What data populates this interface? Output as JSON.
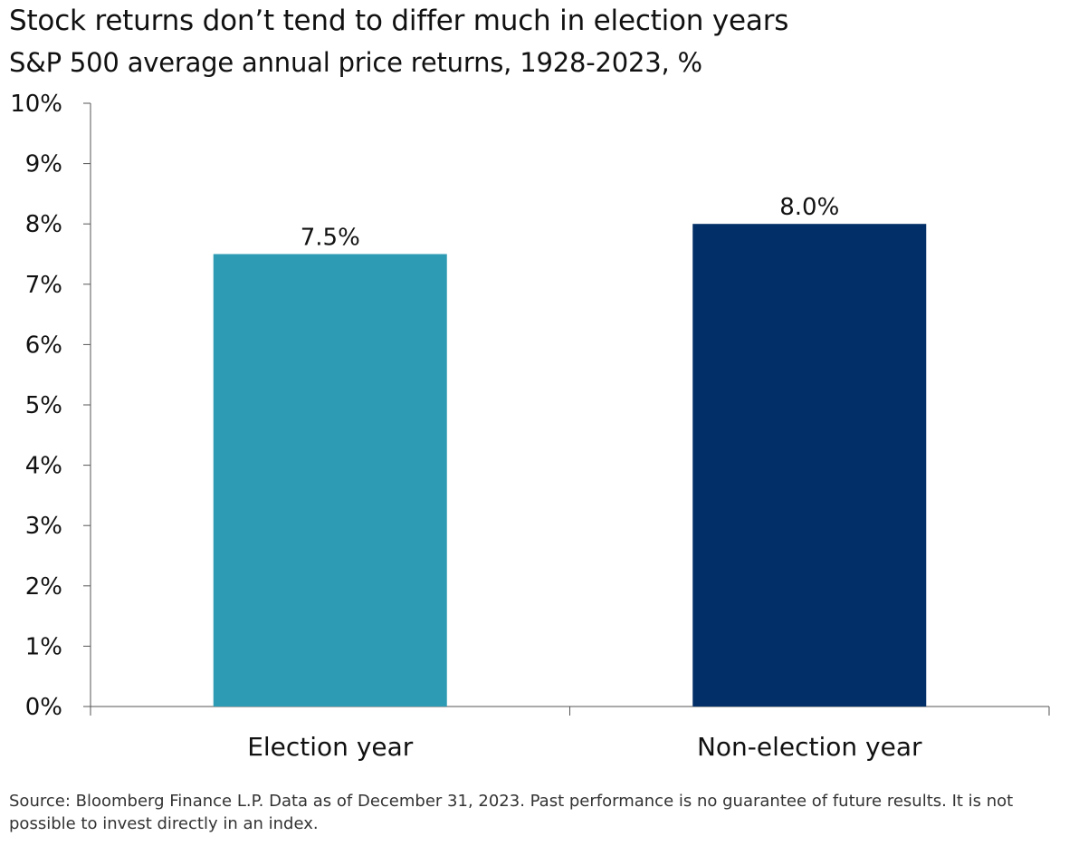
{
  "chart_data": {
    "type": "bar",
    "title": "Stock returns don’t tend to differ much in election years",
    "subtitle": "S&P 500 average annual price returns, 1928-2023, %",
    "categories": [
      "Election year",
      "Non-election year"
    ],
    "values": [
      7.5,
      8.0
    ],
    "data_labels": [
      "7.5%",
      "8.0%"
    ],
    "bar_colors": [
      "#2e9bb4",
      "#022f68"
    ],
    "ylim": [
      0,
      10
    ],
    "yticks": [
      0,
      1,
      2,
      3,
      4,
      5,
      6,
      7,
      8,
      9,
      10
    ],
    "ytick_labels": [
      "0%",
      "1%",
      "2%",
      "3%",
      "4%",
      "5%",
      "6%",
      "7%",
      "8%",
      "9%",
      "10%"
    ],
    "grid": false,
    "legend": "none"
  },
  "footnote": "Source: Bloomberg Finance L.P. Data as of December 31, 2023. Past performance is no guarantee of future results. It is not possible to invest directly in an index."
}
